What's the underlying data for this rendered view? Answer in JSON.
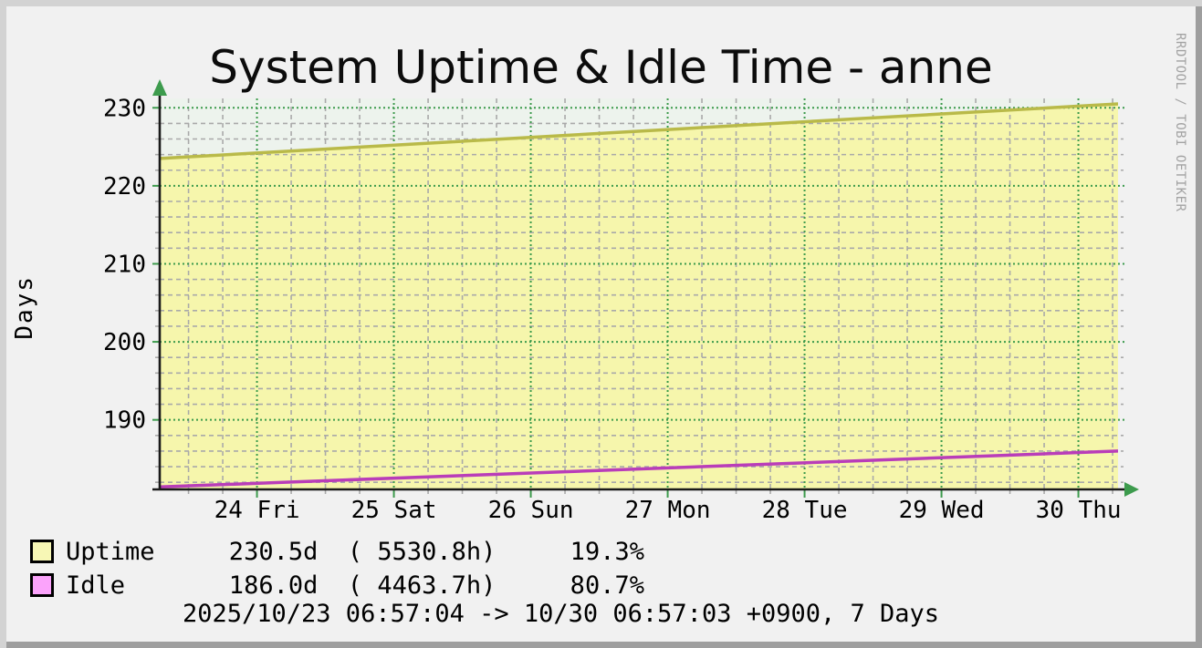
{
  "header": {
    "title": "System Uptime & Idle Time - anne",
    "watermark": "RRDTOOL / TOBI OETIKER"
  },
  "legend": {
    "rows": [
      {
        "name": "Uptime",
        "swatch_color": "#f7f7b5",
        "text": "Uptime     230.5d  ( 5530.8h)     19.3%"
      },
      {
        "name": "Idle",
        "swatch_color": "#fba3fb",
        "text": "Idle       186.0d  ( 4463.7h)     80.7%"
      }
    ]
  },
  "footer": {
    "caption": "2025/10/23 06:57:04 -> 10/30 06:57:03 +0900, 7 Days"
  },
  "chart_data": {
    "type": "area",
    "title": "System Uptime & Idle Time - anne",
    "ylabel": "Days",
    "xlabel": "",
    "x_start": "2025/10/23 06:57:04",
    "x_end": "2025/10/30 06:57:03 +0900",
    "x_range_hours": 168,
    "ylim": [
      181.2,
      231.2
    ],
    "y_major_ticks": [
      190,
      200,
      210,
      220,
      230
    ],
    "y_minor_step": 2,
    "x_major_ticks": [
      {
        "hour": 17.05,
        "label": "24 Fri"
      },
      {
        "hour": 41.05,
        "label": "25 Sat"
      },
      {
        "hour": 65.05,
        "label": "26 Sun"
      },
      {
        "hour": 89.05,
        "label": "27 Mon"
      },
      {
        "hour": 113.05,
        "label": "28 Tue"
      },
      {
        "hour": 137.05,
        "label": "29 Wed"
      },
      {
        "hour": 161.05,
        "label": "30 Thu"
      }
    ],
    "x_minor_first_hour": 5.05,
    "x_minor_step_hours": 6,
    "grid": true,
    "legend_position": "bottom-left",
    "series": [
      {
        "name": "Uptime",
        "style": "area",
        "fill": "#f6f6ac",
        "stroke": "#b9ba49",
        "points": [
          {
            "hour": 0,
            "value": 223.5
          },
          {
            "hour": 168,
            "value": 230.5
          }
        ],
        "current": "230.5d",
        "current_hours": "5530.8h",
        "percent": "19.3%"
      },
      {
        "name": "Idle",
        "style": "line",
        "stroke": "#b93db9",
        "points": [
          {
            "hour": 0,
            "value": 181.4
          },
          {
            "hour": 168,
            "value": 186.0
          }
        ],
        "current": "186.0d",
        "current_hours": "4463.7h",
        "percent": "80.7%"
      }
    ],
    "colors": {
      "canvas": "#edf3ed",
      "major_grid": "#3d9b4d",
      "minor_grid": "#a9a9a9",
      "axis": "#1a1a1a",
      "arrow": "#3d9b4d"
    }
  }
}
